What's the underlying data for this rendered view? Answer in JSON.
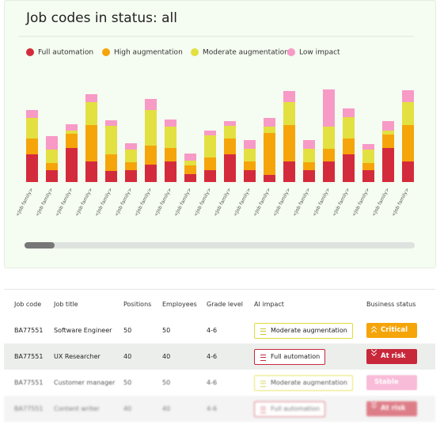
{
  "chart_data": {
    "type": "bar",
    "stacked": true,
    "title": "Job codes in status: all",
    "categories": [
      "<Job family>",
      "<Job family>",
      "<Job family>",
      "<Job family>",
      "<Job family>",
      "<Job family>",
      "<Job family>",
      "<Job family>",
      "<Job family>",
      "<Job family>",
      "<Job family>",
      "<Job family>",
      "<Job family>",
      "<Job family>",
      "<Job family>",
      "<Job family>",
      "<Job family>",
      "<Job family>",
      "<Job family>",
      "<Job family>"
    ],
    "series": [
      {
        "name": "Full automation",
        "color": "#d42b3c",
        "values": [
          35,
          15,
          43,
          26,
          14,
          15,
          22,
          26,
          10,
          15,
          35,
          15,
          9,
          26,
          15,
          26,
          35,
          15,
          43,
          26
        ]
      },
      {
        "name": "High augmentation",
        "color": "#f5a50a",
        "values": [
          20,
          9,
          18,
          46,
          21,
          10,
          24,
          17,
          11,
          16,
          20,
          11,
          53,
          46,
          10,
          16,
          20,
          9,
          17,
          46
        ]
      },
      {
        "name": "Moderate augmentation",
        "color": "#e3e042",
        "values": [
          26,
          17,
          4,
          29,
          36,
          16,
          45,
          27,
          6,
          28,
          16,
          16,
          8,
          29,
          17,
          28,
          27,
          17,
          5,
          29
        ]
      },
      {
        "name": "Low impact",
        "color": "#f79ac6",
        "values": [
          10,
          17,
          8,
          10,
          7,
          8,
          14,
          9,
          9,
          6,
          6,
          11,
          11,
          14,
          11,
          47,
          11,
          7,
          12,
          15
        ]
      }
    ],
    "ylim": [
      0,
      125
    ],
    "legend": "top-left"
  },
  "table": {
    "columns": [
      "Job code",
      "Job title",
      "Positions",
      "Employees",
      "Grade level",
      "AI impact",
      "Business status"
    ],
    "rows": [
      [
        "BA77551",
        "Software Engineer",
        "50",
        "50",
        "4-6",
        "Moderate augmentation",
        "Critical"
      ],
      [
        "BA77551",
        "UX Researcher",
        "40",
        "40",
        "4-6",
        "Full automation",
        "At risk"
      ],
      [
        "BA77551",
        "Customer manager",
        "50",
        "50",
        "4-6",
        "Moderate augmentation",
        "Stable"
      ],
      [
        "BA77551",
        "Content writer",
        "40",
        "40",
        "4-6",
        "Full automation",
        "At risk"
      ]
    ]
  }
}
